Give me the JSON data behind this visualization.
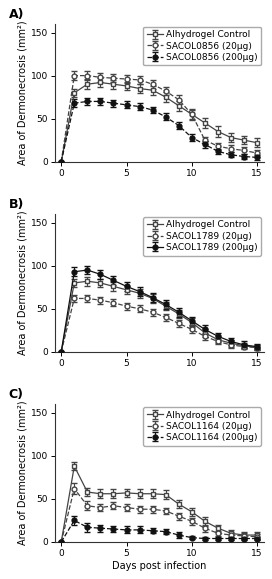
{
  "panels": [
    {
      "label": "A)",
      "legend": [
        "Alhydrogel Control",
        "SACOL0856 (20μg)",
        "SACOL0856 (200μg)"
      ],
      "days": [
        0,
        1,
        2,
        3,
        4,
        5,
        6,
        7,
        8,
        9,
        10,
        11,
        12,
        13,
        14,
        15
      ],
      "series": [
        {
          "y": [
            0,
            80,
            90,
            92,
            90,
            88,
            85,
            83,
            75,
            65,
            55,
            45,
            35,
            28,
            25,
            22
          ],
          "yerr": [
            0,
            5,
            6,
            5,
            5,
            5,
            5,
            5,
            6,
            6,
            6,
            6,
            6,
            5,
            5,
            5
          ],
          "marker": "s",
          "linestyle": "-",
          "color": "#444444",
          "fillstyle": "none"
        },
        {
          "y": [
            0,
            100,
            100,
            98,
            97,
            96,
            95,
            90,
            82,
            72,
            55,
            25,
            18,
            15,
            13,
            10
          ],
          "yerr": [
            0,
            5,
            5,
            5,
            5,
            5,
            5,
            5,
            5,
            5,
            5,
            4,
            4,
            4,
            4,
            4
          ],
          "marker": "o",
          "linestyle": "--",
          "color": "#444444",
          "fillstyle": "none"
        },
        {
          "y": [
            0,
            68,
            70,
            70,
            68,
            66,
            64,
            60,
            52,
            42,
            28,
            20,
            12,
            8,
            6,
            5
          ],
          "yerr": [
            0,
            5,
            4,
            4,
            4,
            4,
            4,
            4,
            4,
            4,
            4,
            4,
            3,
            3,
            3,
            3
          ],
          "marker": "o",
          "linestyle": "--",
          "color": "#111111",
          "fillstyle": "full"
        }
      ]
    },
    {
      "label": "B)",
      "legend": [
        "Alhydrogel Control",
        "SACOL1789 (20μg)",
        "SACOL1789 (200μg)"
      ],
      "days": [
        0,
        1,
        2,
        3,
        4,
        5,
        6,
        7,
        8,
        9,
        10,
        11,
        12,
        13,
        14,
        15
      ],
      "series": [
        {
          "y": [
            0,
            80,
            82,
            80,
            76,
            72,
            68,
            62,
            53,
            44,
            34,
            22,
            14,
            10,
            7,
            5
          ],
          "yerr": [
            0,
            5,
            5,
            5,
            5,
            5,
            5,
            5,
            5,
            5,
            5,
            5,
            4,
            4,
            3,
            3
          ],
          "marker": "s",
          "linestyle": "-",
          "color": "#444444",
          "fillstyle": "none"
        },
        {
          "y": [
            0,
            62,
            62,
            60,
            57,
            53,
            50,
            46,
            40,
            33,
            26,
            18,
            12,
            8,
            6,
            5
          ],
          "yerr": [
            0,
            4,
            4,
            4,
            4,
            4,
            4,
            4,
            4,
            4,
            4,
            4,
            3,
            3,
            3,
            3
          ],
          "marker": "o",
          "linestyle": "--",
          "color": "#444444",
          "fillstyle": "none"
        },
        {
          "y": [
            0,
            93,
            95,
            90,
            83,
            76,
            70,
            63,
            55,
            46,
            36,
            26,
            18,
            12,
            8,
            6
          ],
          "yerr": [
            0,
            5,
            5,
            5,
            5,
            5,
            5,
            5,
            5,
            5,
            5,
            5,
            4,
            4,
            4,
            3
          ],
          "marker": "o",
          "linestyle": "-",
          "color": "#111111",
          "fillstyle": "full"
        }
      ]
    },
    {
      "label": "C)",
      "legend": [
        "Alhydrogel Control",
        "SACOL1164 (20μg)",
        "SACOL1164 (200μg)"
      ],
      "days": [
        0,
        1,
        2,
        3,
        4,
        5,
        6,
        7,
        8,
        9,
        10,
        11,
        12,
        13,
        14,
        15
      ],
      "series": [
        {
          "y": [
            0,
            88,
            58,
            56,
            56,
            57,
            56,
            56,
            55,
            44,
            35,
            24,
            16,
            10,
            8,
            8
          ],
          "yerr": [
            0,
            5,
            5,
            5,
            5,
            5,
            5,
            5,
            5,
            5,
            5,
            5,
            4,
            4,
            4,
            4
          ],
          "marker": "s",
          "linestyle": "-",
          "color": "#444444",
          "fillstyle": "none"
        },
        {
          "y": [
            0,
            62,
            42,
            40,
            42,
            40,
            38,
            38,
            36,
            30,
            24,
            16,
            10,
            8,
            7,
            6
          ],
          "yerr": [
            0,
            6,
            5,
            4,
            4,
            4,
            4,
            4,
            4,
            4,
            4,
            4,
            3,
            3,
            3,
            3
          ],
          "marker": "o",
          "linestyle": "--",
          "color": "#444444",
          "fillstyle": "none"
        },
        {
          "y": [
            0,
            25,
            17,
            16,
            15,
            14,
            14,
            13,
            12,
            8,
            5,
            4,
            4,
            4,
            4,
            4
          ],
          "yerr": [
            0,
            5,
            5,
            4,
            4,
            4,
            4,
            3,
            3,
            3,
            2,
            2,
            2,
            2,
            2,
            2
          ],
          "marker": "o",
          "linestyle": "--",
          "color": "#111111",
          "fillstyle": "full"
        }
      ]
    }
  ],
  "ylabel": "Area of Dermonecrosis (mm²)",
  "xlabel": "Days post infection",
  "ylim": [
    0,
    160
  ],
  "yticks": [
    0,
    50,
    100,
    150
  ],
  "xticks": [
    0,
    5,
    10,
    15
  ],
  "background_color": "#ffffff",
  "fontsize_label": 7,
  "fontsize_tick": 6.5,
  "fontsize_legend": 6.5,
  "fontsize_panel": 9,
  "markersize": 3.5,
  "linewidth": 0.9,
  "capsize": 2,
  "elinewidth": 0.8
}
